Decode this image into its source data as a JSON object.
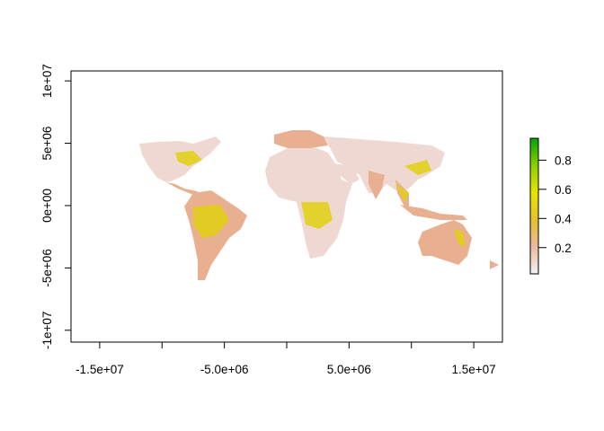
{
  "chart_data": {
    "type": "heatmap",
    "title": "",
    "xlabel": "",
    "ylabel": "",
    "xlim": [
      -17300000,
      17300000
    ],
    "ylim": [
      -10950000,
      10800000
    ],
    "x_ticks": [
      -15000000,
      -10000000,
      -5000000,
      0,
      5000000,
      10000000,
      15000000
    ],
    "x_tick_labels": [
      "-1.5e+07",
      "",
      "-5.0e+06",
      "",
      "5.0e+06",
      "",
      "1.5e+07"
    ],
    "y_ticks": [
      10000000,
      5000000,
      0,
      -5000000,
      -10000000
    ],
    "y_tick_labels": [
      "1e+07",
      "5e+06",
      "0e+00",
      "-5e+06",
      "-1e+07"
    ],
    "legend": {
      "position": "right",
      "range": [
        0.02,
        0.95
      ],
      "ticks": [
        0.2,
        0.4,
        0.6,
        0.8
      ],
      "tick_labels": [
        "0.2",
        "0.4",
        "0.6",
        "0.8"
      ],
      "colors": [
        "#f2f2f2",
        "#eeb99f",
        "#e6c02a",
        "#e6e600",
        "#8bd000",
        "#00a600"
      ]
    },
    "grid": false,
    "colors": {
      "low": "#f0d8d2",
      "mid": "#e8b090",
      "high": "#e0d010",
      "top": "#60c000"
    }
  }
}
